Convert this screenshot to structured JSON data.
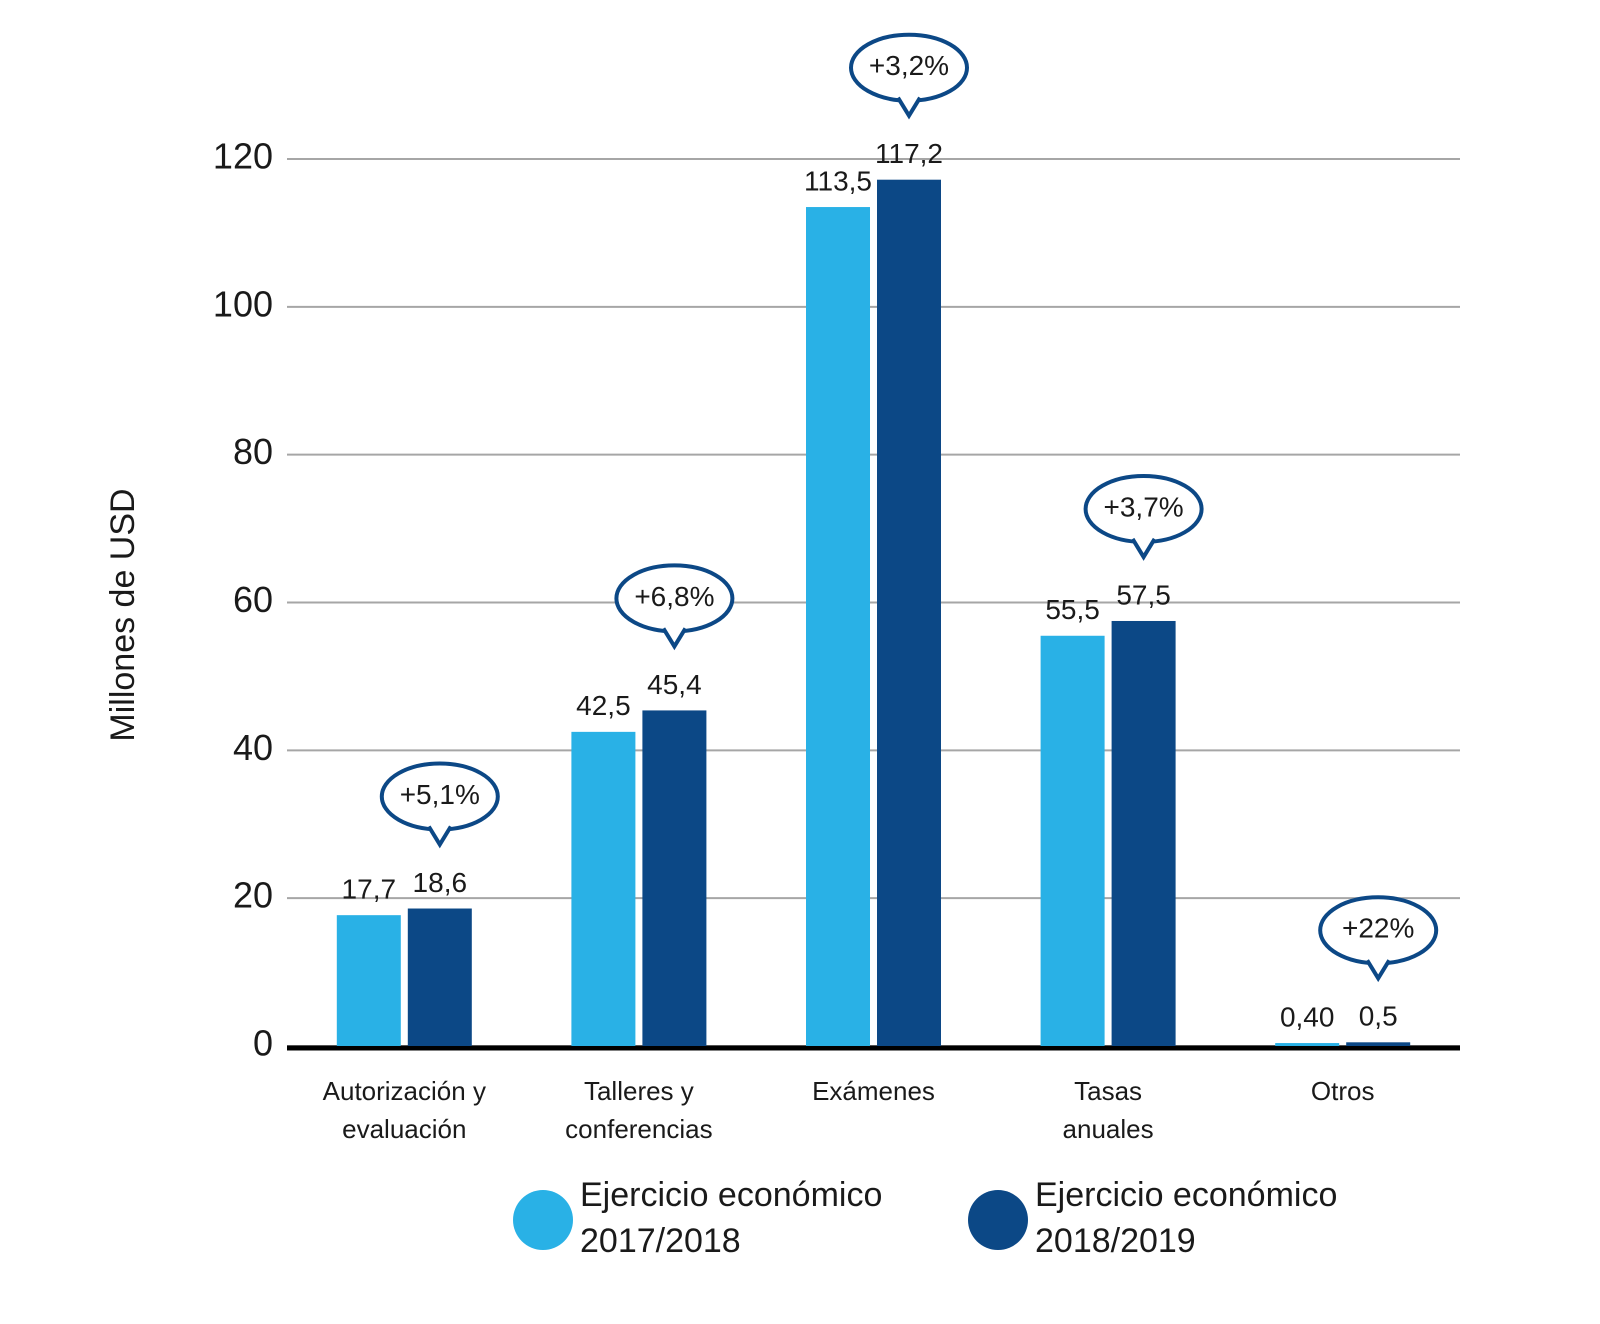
{
  "chart_data": {
    "type": "bar",
    "ylabel": "Millones de USD",
    "categories": [
      "Autorización y\nevaluación",
      "Talleres y\nconferencias",
      "Exámenes",
      "Tasas\nanuales",
      "Otros"
    ],
    "series": [
      {
        "name": "Ejercicio económico 2017/2018",
        "color": "#29b1e6",
        "values": [
          17.7,
          42.5,
          113.5,
          55.5,
          0.4
        ],
        "value_labels": [
          "17,7",
          "42,5",
          "113,5",
          "55,5",
          "0,40"
        ]
      },
      {
        "name": "Ejercicio económico 2018/2019",
        "color": "#0c4886",
        "values": [
          18.6,
          45.4,
          117.2,
          57.5,
          0.5
        ],
        "value_labels": [
          "18,6",
          "45,4",
          "117,2",
          "57,5",
          "0,5"
        ]
      }
    ],
    "annotations": [
      "+5,1%",
      "+6,8%",
      "+3,2%",
      "+3,7%",
      "+22%"
    ],
    "ylim": [
      0,
      120
    ],
    "yticks": [
      0,
      20,
      40,
      60,
      80,
      100,
      120
    ],
    "grid": true
  }
}
